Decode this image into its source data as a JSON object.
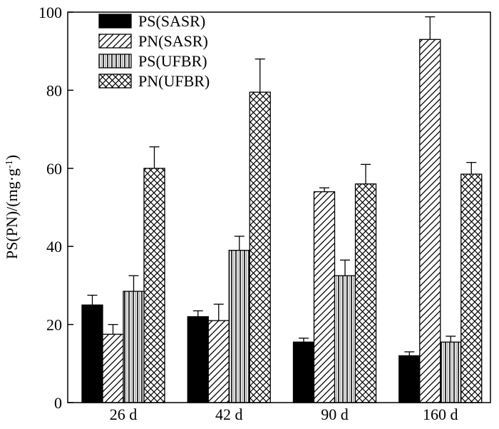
{
  "chart_data": {
    "type": "bar",
    "title": "",
    "xlabel": "",
    "ylabel": "PS(PN)/(mg·g",
    "ylabel_superscript": "-1",
    "ylabel_suffix": ")",
    "ylim": [
      0,
      100
    ],
    "yticks": [
      0,
      20,
      40,
      60,
      80,
      100
    ],
    "categories": [
      "26 d",
      "42 d",
      "90 d",
      "160 d"
    ],
    "series": [
      {
        "name": "PS(SASR)",
        "pattern": "solid",
        "values": [
          25,
          22,
          15.5,
          12
        ],
        "errors": [
          2.5,
          1.5,
          1,
          1
        ]
      },
      {
        "name": "PN(SASR)",
        "pattern": "diagonal",
        "values": [
          17.5,
          21,
          54,
          93
        ],
        "errors": [
          2.5,
          4.2,
          1,
          5.8
        ]
      },
      {
        "name": "PS(UFBR)",
        "pattern": "vertical",
        "values": [
          28.5,
          39,
          32.5,
          15.5
        ],
        "errors": [
          4,
          3.6,
          4,
          1.5
        ]
      },
      {
        "name": "PN(UFBR)",
        "pattern": "crosshatch",
        "values": [
          60,
          79.5,
          56,
          58.5
        ],
        "errors": [
          5.5,
          8.5,
          5,
          3
        ]
      }
    ],
    "legend_position": "top-left",
    "grid": false,
    "colors": {
      "bar_stroke": "#000000",
      "fill_solid": "#000000",
      "hatch": "#000000",
      "background": "#ffffff"
    }
  }
}
